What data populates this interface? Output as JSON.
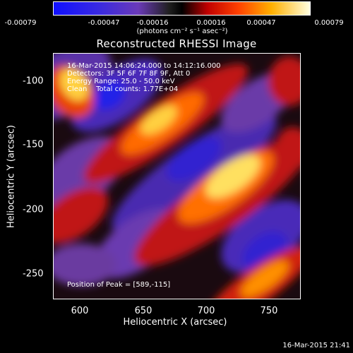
{
  "colorbar": {
    "ticks": [
      "-0.00079",
      "-0.00047",
      "-0.00016",
      "0.00016",
      "0.00047",
      "0.00079"
    ],
    "unit": "(photons cm⁻² s⁻¹ asec⁻²)"
  },
  "title": "Reconstructed RHESSI Image",
  "info": {
    "time_range": "16-Mar-2015 14:06:24.000 to 14:12:16.000",
    "detectors": "Detectors: 3F 5F 6F 7F 8F 9F, Att 0",
    "energy": "Energy Range: 25.0 - 50.0 keV",
    "counts": "Clean    Total counts: 1.77E+04"
  },
  "peak": "Position of Peak = [589,-115]",
  "axes": {
    "xlabel": "Heliocentric X (arcsec)",
    "ylabel": "Heliocentric Y (arcsec)",
    "xticks": [
      "600",
      "650",
      "700",
      "750"
    ],
    "yticks": [
      "-100",
      "-150",
      "-200",
      "-250"
    ]
  },
  "timestamp": "16-Mar-2015 21:41"
}
